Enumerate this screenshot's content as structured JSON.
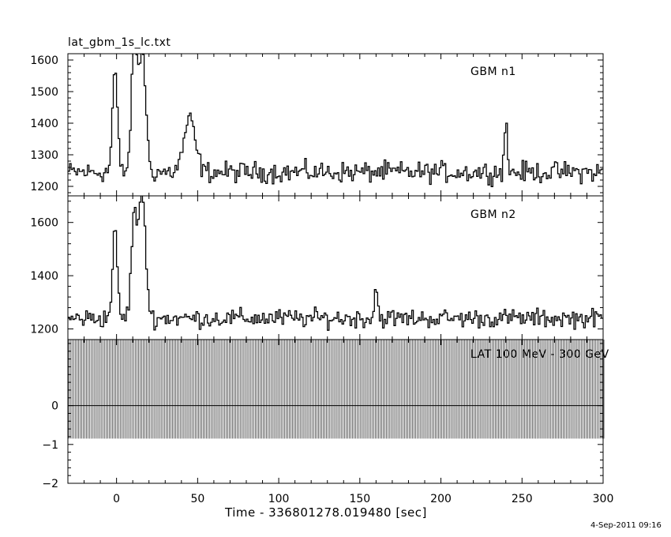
{
  "file_title": "lat_gbm_1s_lc.txt",
  "timestamp": "4-Sep-2011 09:16",
  "chart_data": {
    "type": "line",
    "xlabel": "Time - 336801278.019480 [sec]",
    "xlim": [
      -30,
      300
    ],
    "xticks": [
      0,
      50,
      100,
      150,
      200,
      250,
      300
    ],
    "panels": [
      {
        "name": "GBM n1",
        "ylim": [
          1170,
          1620
        ],
        "yticks": [
          1200,
          1300,
          1400,
          1500,
          1600
        ],
        "series_style": "histogram",
        "baseline": 1245,
        "noise": 28,
        "features": [
          {
            "t": -1,
            "peak": 1570,
            "width": 1.5
          },
          {
            "t": 11,
            "peak": 1630,
            "width": 1.8
          },
          {
            "t": 16,
            "peak": 1630,
            "width": 2.0
          },
          {
            "t": 45,
            "peak": 1410,
            "width": 3.5
          },
          {
            "t": 240,
            "peak": 1395,
            "width": 1.0
          }
        ]
      },
      {
        "name": "GBM n2",
        "ylim": [
          1160,
          1700
        ],
        "yticks": [
          1200,
          1400,
          1600
        ],
        "series_style": "histogram",
        "baseline": 1240,
        "noise": 30,
        "features": [
          {
            "t": -1,
            "peak": 1560,
            "width": 1.5
          },
          {
            "t": 11,
            "peak": 1630,
            "width": 1.8
          },
          {
            "t": 16,
            "peak": 1700,
            "width": 2.0
          },
          {
            "t": 160,
            "peak": 1355,
            "width": 1.0
          }
        ]
      },
      {
        "name": "LAT 100 MeV - 300 GeV",
        "ylim": [
          -2,
          1.7
        ],
        "yticks": [
          -2,
          -1,
          0
        ],
        "series_style": "error-bars",
        "value": 0,
        "error_range": [
          -0.85,
          1.7
        ]
      }
    ]
  }
}
